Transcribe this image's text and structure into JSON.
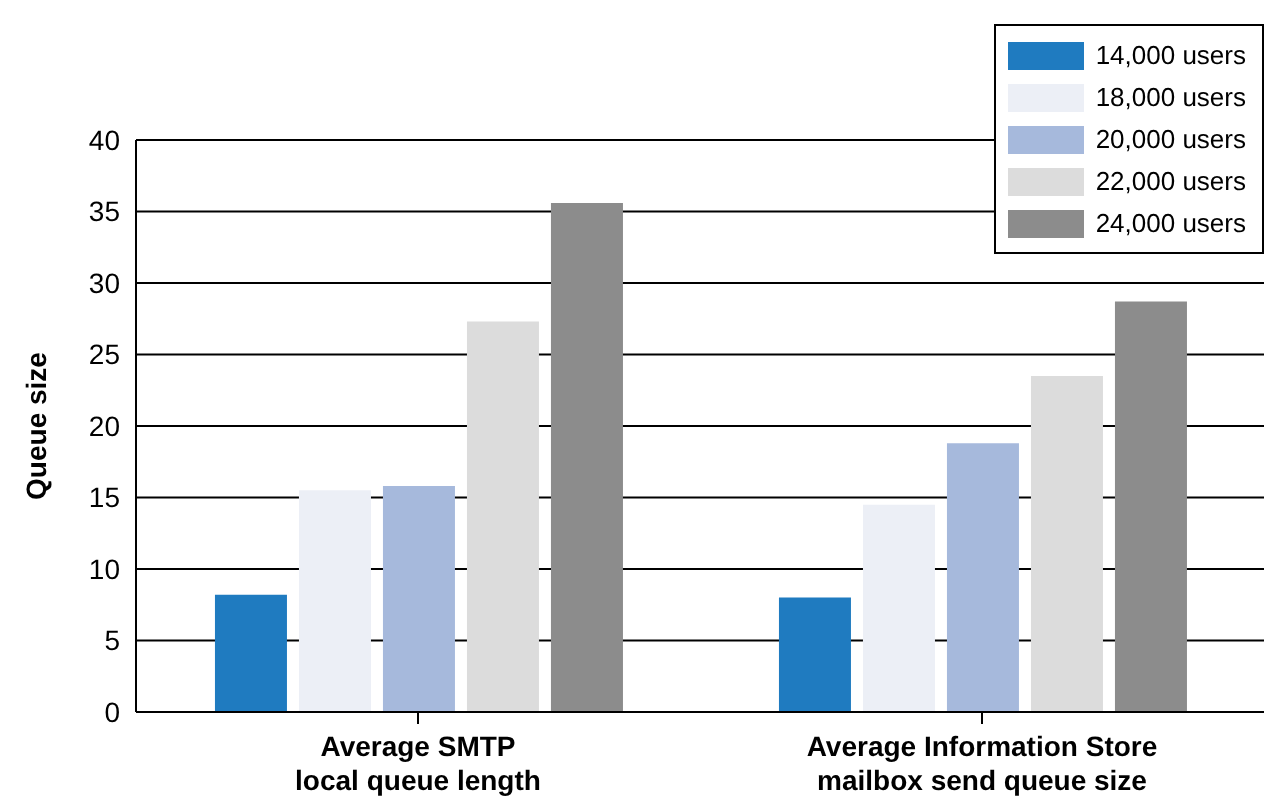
{
  "chart_data": {
    "type": "bar",
    "ylabel": "Queue size",
    "categories": [
      "Average SMTP local queue length",
      "Average Information Store mailbox send queue size"
    ],
    "series": [
      {
        "name": "14,000 users",
        "color": "#1f7bc0",
        "values": [
          8.2,
          8.0
        ]
      },
      {
        "name": "18,000 users",
        "color": "#eceff6",
        "values": [
          15.5,
          14.5
        ]
      },
      {
        "name": "20,000 users",
        "color": "#a6b9dc",
        "values": [
          15.8,
          18.8
        ]
      },
      {
        "name": "22,000 users",
        "color": "#dcdcdc",
        "values": [
          27.3,
          23.5
        ]
      },
      {
        "name": "24,000 users",
        "color": "#8c8c8c",
        "values": [
          35.6,
          28.7
        ]
      }
    ],
    "ylim": [
      0,
      40
    ],
    "yticks": [
      0,
      5,
      10,
      15,
      20,
      25,
      30,
      35,
      40
    ],
    "grid": "y",
    "legend": "top right"
  }
}
